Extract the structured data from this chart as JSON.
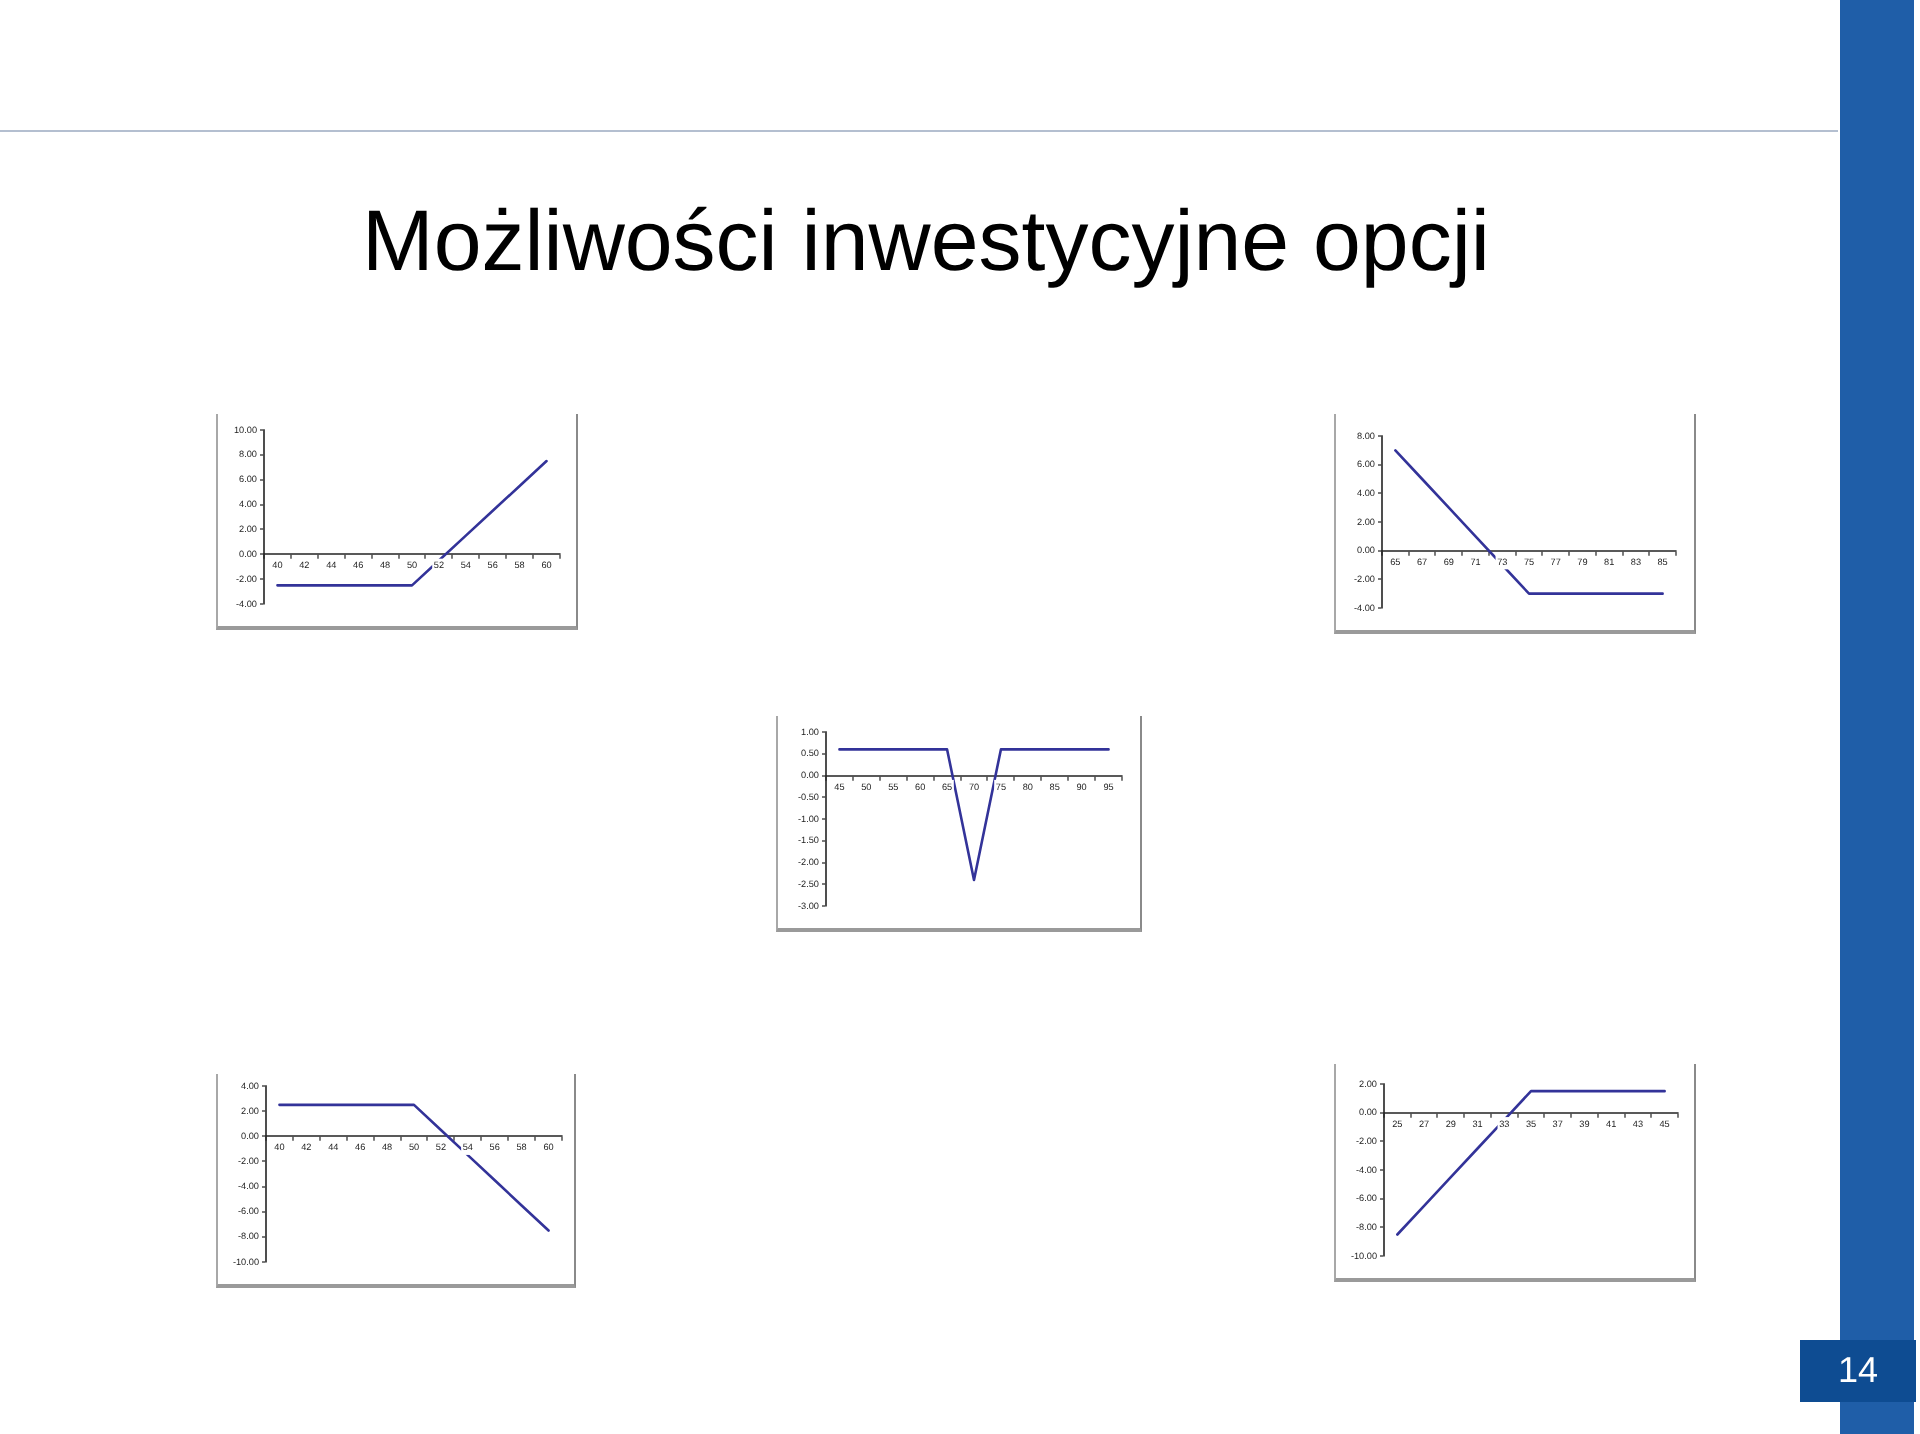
{
  "chart_data": [
    {
      "type": "line",
      "title": "Możliwości inwestycyjne opcji",
      "categories": [
        "40",
        "42",
        "44",
        "46",
        "48",
        "50",
        "52",
        "54",
        "56",
        "58",
        "60"
      ],
      "values": [
        -2.5,
        -2.5,
        -2.5,
        -2.5,
        -2.5,
        -2.5,
        -0.5,
        1.5,
        3.5,
        5.5,
        7.5
      ],
      "color": "#333399",
      "ylim": [
        -4,
        10
      ],
      "yticks": [
        {
          "value": -4,
          "label": "-4.00"
        },
        {
          "value": -2,
          "label": "-2.00"
        },
        {
          "value": 0,
          "label": "0.00"
        },
        {
          "value": 2,
          "label": "2.00"
        },
        {
          "value": 4,
          "label": "4.00"
        },
        {
          "value": 6,
          "label": "6.00"
        },
        {
          "value": 8,
          "label": "8.00"
        },
        {
          "value": 10,
          "label": "10.00"
        }
      ]
    },
    {
      "type": "line",
      "categories": [
        "65",
        "67",
        "69",
        "71",
        "73",
        "75",
        "77",
        "79",
        "81",
        "83",
        "85"
      ],
      "values": [
        7,
        5,
        3,
        1,
        -1,
        -3,
        -3,
        -3,
        -3,
        -3,
        -3
      ],
      "color": "#333399",
      "ylim": [
        -4,
        8
      ],
      "yticks": [
        {
          "value": -4,
          "label": "-4.00"
        },
        {
          "value": -2,
          "label": "-2.00"
        },
        {
          "value": 0,
          "label": "0.00"
        },
        {
          "value": 2,
          "label": "2.00"
        },
        {
          "value": 4,
          "label": "4.00"
        },
        {
          "value": 6,
          "label": "6.00"
        },
        {
          "value": 8,
          "label": "8.00"
        }
      ]
    },
    {
      "type": "line",
      "categories": [
        "45",
        "50",
        "55",
        "60",
        "65",
        "70",
        "75",
        "80",
        "85",
        "90",
        "95"
      ],
      "values": [
        0.6,
        0.6,
        0.6,
        0.6,
        0.6,
        -2.4,
        0.6,
        0.6,
        0.6,
        0.6,
        0.6
      ],
      "color": "#333399",
      "ylim": [
        -3,
        1
      ],
      "yticks": [
        {
          "value": -3,
          "label": "-3.00"
        },
        {
          "value": -2.5,
          "label": "-2.50"
        },
        {
          "value": -2,
          "label": "-2.00"
        },
        {
          "value": -1.5,
          "label": "-1.50"
        },
        {
          "value": -1,
          "label": "-1.00"
        },
        {
          "value": -0.5,
          "label": "-0.50"
        },
        {
          "value": 0,
          "label": "0.00"
        },
        {
          "value": 0.5,
          "label": "0.50"
        },
        {
          "value": 1,
          "label": "1.00"
        }
      ]
    },
    {
      "type": "line",
      "categories": [
        "40",
        "42",
        "44",
        "46",
        "48",
        "50",
        "52",
        "54",
        "56",
        "58",
        "60"
      ],
      "values": [
        2.5,
        2.5,
        2.5,
        2.5,
        2.5,
        2.5,
        0.5,
        -1.5,
        -3.5,
        -5.5,
        -7.5
      ],
      "color": "#333399",
      "ylim": [
        -10,
        4
      ],
      "yticks": [
        {
          "value": -10,
          "label": "-10.00"
        },
        {
          "value": -8,
          "label": "-8.00"
        },
        {
          "value": -6,
          "label": "-6.00"
        },
        {
          "value": -4,
          "label": "-4.00"
        },
        {
          "value": -2,
          "label": "-2.00"
        },
        {
          "value": 0,
          "label": "0.00"
        },
        {
          "value": 2,
          "label": "2.00"
        },
        {
          "value": 4,
          "label": "4.00"
        }
      ]
    },
    {
      "type": "line",
      "categories": [
        "25",
        "27",
        "29",
        "31",
        "33",
        "35",
        "37",
        "39",
        "41",
        "43",
        "45"
      ],
      "values": [
        -8.5,
        -6.5,
        -4.5,
        -2.5,
        -0.5,
        1.5,
        1.5,
        1.5,
        1.5,
        1.5,
        1.5
      ],
      "color": "#333399",
      "ylim": [
        -10,
        2
      ],
      "yticks": [
        {
          "value": -10,
          "label": "-10.00"
        },
        {
          "value": -8,
          "label": "-8.00"
        },
        {
          "value": -6,
          "label": "-6.00"
        },
        {
          "value": -4,
          "label": "-4.00"
        },
        {
          "value": -2,
          "label": "-2.00"
        },
        {
          "value": 0,
          "label": "0.00"
        },
        {
          "value": 2,
          "label": "2.00"
        }
      ],
      "annotations": [
        "14"
      ]
    }
  ]
}
